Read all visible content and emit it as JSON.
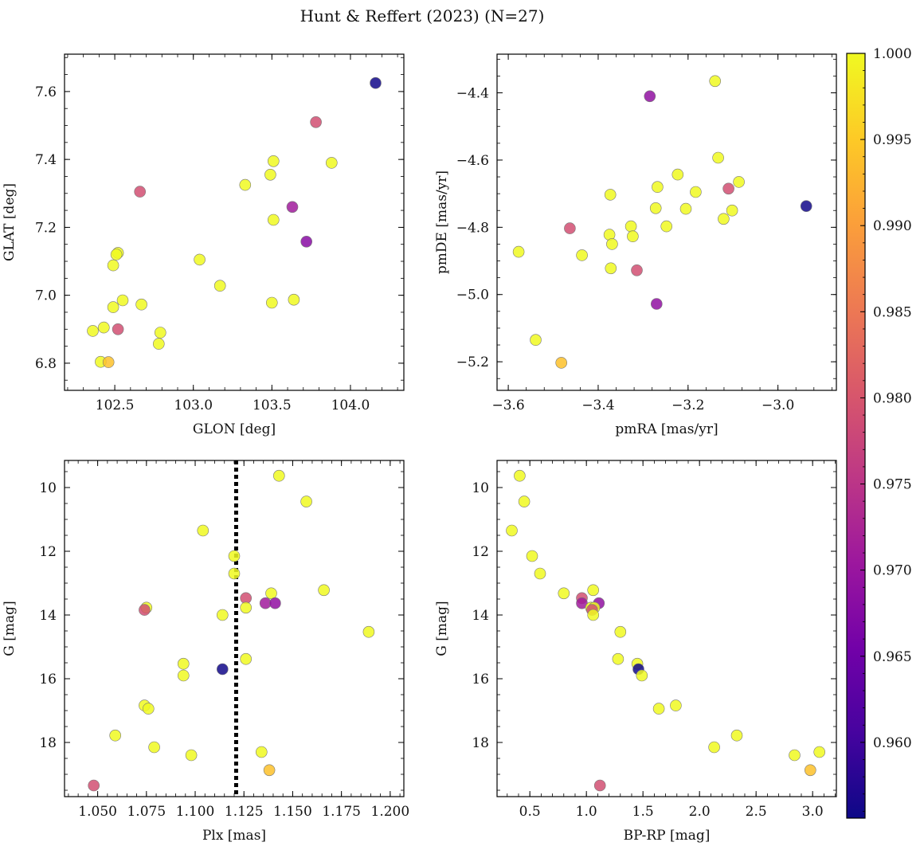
{
  "figure": {
    "title": "Hunt & Reffert (2023) (N=27)"
  },
  "colormap": {
    "name": "plasma",
    "range": [
      0.9556,
      1.0
    ],
    "stops": [
      "#0d0887",
      "#46039f",
      "#7201a8",
      "#9c179e",
      "#bd3786",
      "#d8576b",
      "#ed7953",
      "#fb9f3a",
      "#fdca26",
      "#f0f921"
    ],
    "ticks": [
      "0.960",
      "0.965",
      "0.970",
      "0.975",
      "0.980",
      "0.985",
      "0.990",
      "0.995",
      "1.000"
    ]
  },
  "chart_data": [
    {
      "type": "scatter",
      "xlabel": "GLON [deg]",
      "ylabel": "GLAT [deg]",
      "xlim": [
        102.18,
        104.34
      ],
      "ylim": [
        6.72,
        7.71
      ],
      "xticks": [
        "102.5",
        "103.0",
        "103.5",
        "104.0"
      ],
      "yticks": [
        "6.8",
        "7.0",
        "7.2",
        "7.4",
        "7.6"
      ],
      "points": [
        {
          "x": 104.16,
          "y": 7.625,
          "c": 0.956
        },
        {
          "x": 103.78,
          "y": 7.51,
          "c": 0.979
        },
        {
          "x": 103.51,
          "y": 7.395,
          "c": 1.0
        },
        {
          "x": 103.88,
          "y": 7.39,
          "c": 1.0
        },
        {
          "x": 103.49,
          "y": 7.355,
          "c": 1.0
        },
        {
          "x": 103.33,
          "y": 7.325,
          "c": 1.0
        },
        {
          "x": 102.66,
          "y": 7.305,
          "c": 0.979
        },
        {
          "x": 103.63,
          "y": 7.26,
          "c": 0.971
        },
        {
          "x": 103.51,
          "y": 7.222,
          "c": 1.0
        },
        {
          "x": 103.72,
          "y": 7.158,
          "c": 0.968
        },
        {
          "x": 102.52,
          "y": 7.125,
          "c": 1.0
        },
        {
          "x": 102.51,
          "y": 7.12,
          "c": 1.0
        },
        {
          "x": 103.04,
          "y": 7.105,
          "c": 1.0
        },
        {
          "x": 102.49,
          "y": 7.088,
          "c": 1.0
        },
        {
          "x": 103.17,
          "y": 7.028,
          "c": 1.0
        },
        {
          "x": 103.64,
          "y": 6.987,
          "c": 1.0
        },
        {
          "x": 102.55,
          "y": 6.985,
          "c": 1.0
        },
        {
          "x": 103.5,
          "y": 6.978,
          "c": 1.0
        },
        {
          "x": 102.67,
          "y": 6.973,
          "c": 1.0
        },
        {
          "x": 102.49,
          "y": 6.965,
          "c": 1.0
        },
        {
          "x": 102.43,
          "y": 6.905,
          "c": 1.0
        },
        {
          "x": 102.52,
          "y": 6.9,
          "c": 0.979
        },
        {
          "x": 102.36,
          "y": 6.895,
          "c": 1.0
        },
        {
          "x": 102.79,
          "y": 6.89,
          "c": 1.0
        },
        {
          "x": 102.78,
          "y": 6.857,
          "c": 1.0
        },
        {
          "x": 102.41,
          "y": 6.804,
          "c": 1.0
        },
        {
          "x": 102.46,
          "y": 6.803,
          "c": 0.994
        }
      ]
    },
    {
      "type": "scatter",
      "xlabel": "pmRA [mas/yr]",
      "ylabel": "pmDE [mas/yr]",
      "xlim": [
        -3.625,
        -2.87
      ],
      "ylim": [
        -5.285,
        -4.285
      ],
      "xticks": [
        "−3.6",
        "−3.4",
        "−3.2",
        "−3.0"
      ],
      "yticks": [
        "−4.4",
        "−4.6",
        "−4.8",
        "−5.0",
        "−5.2"
      ],
      "points": [
        {
          "x": -3.14,
          "y": -4.365,
          "c": 1.0
        },
        {
          "x": -3.285,
          "y": -4.41,
          "c": 0.969
        },
        {
          "x": -3.133,
          "y": -4.593,
          "c": 1.0
        },
        {
          "x": -3.223,
          "y": -4.643,
          "c": 1.0
        },
        {
          "x": -3.087,
          "y": -4.665,
          "c": 1.0
        },
        {
          "x": -3.268,
          "y": -4.68,
          "c": 1.0
        },
        {
          "x": -3.11,
          "y": -4.685,
          "c": 0.979
        },
        {
          "x": -3.183,
          "y": -4.695,
          "c": 1.0
        },
        {
          "x": -3.373,
          "y": -4.703,
          "c": 1.0
        },
        {
          "x": -2.937,
          "y": -4.737,
          "c": 0.956
        },
        {
          "x": -3.272,
          "y": -4.743,
          "c": 1.0
        },
        {
          "x": -3.205,
          "y": -4.745,
          "c": 1.0
        },
        {
          "x": -3.102,
          "y": -4.75,
          "c": 1.0
        },
        {
          "x": -3.121,
          "y": -4.775,
          "c": 1.0
        },
        {
          "x": -3.327,
          "y": -4.797,
          "c": 1.0
        },
        {
          "x": -3.248,
          "y": -4.797,
          "c": 1.0
        },
        {
          "x": -3.463,
          "y": -4.803,
          "c": 0.979
        },
        {
          "x": -3.375,
          "y": -4.822,
          "c": 1.0
        },
        {
          "x": -3.323,
          "y": -4.827,
          "c": 1.0
        },
        {
          "x": -3.369,
          "y": -4.85,
          "c": 1.0
        },
        {
          "x": -3.577,
          "y": -4.873,
          "c": 1.0
        },
        {
          "x": -3.436,
          "y": -4.883,
          "c": 1.0
        },
        {
          "x": -3.372,
          "y": -4.922,
          "c": 1.0
        },
        {
          "x": -3.314,
          "y": -4.928,
          "c": 0.979
        },
        {
          "x": -3.27,
          "y": -5.028,
          "c": 0.969
        },
        {
          "x": -3.539,
          "y": -5.135,
          "c": 1.0
        },
        {
          "x": -3.482,
          "y": -5.203,
          "c": 0.994
        }
      ]
    },
    {
      "type": "scatter",
      "xlabel": "Plx [mas]",
      "ylabel": "G [mag]",
      "xlim": [
        1.033,
        1.207
      ],
      "ylim": [
        19.7,
        9.15
      ],
      "xticks": [
        "1.050",
        "1.075",
        "1.100",
        "1.125",
        "1.150",
        "1.175",
        "1.200"
      ],
      "yticks": [
        "10",
        "12",
        "14",
        "16",
        "18"
      ],
      "vline": 1.121,
      "points": [
        {
          "x": 1.143,
          "y": 9.63,
          "c": 1.0
        },
        {
          "x": 1.157,
          "y": 10.44,
          "c": 1.0
        },
        {
          "x": 1.104,
          "y": 11.35,
          "c": 1.0
        },
        {
          "x": 1.12,
          "y": 12.15,
          "c": 1.0
        },
        {
          "x": 1.12,
          "y": 12.7,
          "c": 1.0
        },
        {
          "x": 1.166,
          "y": 13.22,
          "c": 1.0
        },
        {
          "x": 1.139,
          "y": 13.32,
          "c": 1.0
        },
        {
          "x": 1.126,
          "y": 13.47,
          "c": 0.979
        },
        {
          "x": 1.136,
          "y": 13.63,
          "c": 0.971
        },
        {
          "x": 1.141,
          "y": 13.63,
          "c": 0.969
        },
        {
          "x": 1.126,
          "y": 13.77,
          "c": 1.0
        },
        {
          "x": 1.075,
          "y": 13.77,
          "c": 1.0
        },
        {
          "x": 1.074,
          "y": 13.84,
          "c": 0.979
        },
        {
          "x": 1.114,
          "y": 14.0,
          "c": 1.0
        },
        {
          "x": 1.189,
          "y": 14.53,
          "c": 1.0
        },
        {
          "x": 1.126,
          "y": 15.38,
          "c": 1.0
        },
        {
          "x": 1.094,
          "y": 15.53,
          "c": 1.0
        },
        {
          "x": 1.114,
          "y": 15.7,
          "c": 0.956
        },
        {
          "x": 1.094,
          "y": 15.9,
          "c": 1.0
        },
        {
          "x": 1.074,
          "y": 16.84,
          "c": 1.0
        },
        {
          "x": 1.076,
          "y": 16.94,
          "c": 1.0
        },
        {
          "x": 1.059,
          "y": 17.78,
          "c": 1.0
        },
        {
          "x": 1.079,
          "y": 18.15,
          "c": 1.0
        },
        {
          "x": 1.134,
          "y": 18.3,
          "c": 1.0
        },
        {
          "x": 1.098,
          "y": 18.4,
          "c": 1.0
        },
        {
          "x": 1.138,
          "y": 18.87,
          "c": 0.994
        },
        {
          "x": 1.048,
          "y": 19.35,
          "c": 0.979
        }
      ]
    },
    {
      "type": "scatter",
      "xlabel": "BP-RP [mag]",
      "ylabel": "G [mag]",
      "xlim": [
        0.21,
        3.21
      ],
      "ylim": [
        19.7,
        9.15
      ],
      "xticks": [
        "0.5",
        "1.0",
        "1.5",
        "2.0",
        "2.5",
        "3.0"
      ],
      "yticks": [
        "10",
        "12",
        "14",
        "16",
        "18"
      ],
      "points": [
        {
          "x": 0.41,
          "y": 9.63,
          "c": 1.0
        },
        {
          "x": 0.45,
          "y": 10.44,
          "c": 1.0
        },
        {
          "x": 0.34,
          "y": 11.35,
          "c": 1.0
        },
        {
          "x": 0.52,
          "y": 12.15,
          "c": 1.0
        },
        {
          "x": 0.59,
          "y": 12.7,
          "c": 1.0
        },
        {
          "x": 1.06,
          "y": 13.22,
          "c": 1.0
        },
        {
          "x": 0.8,
          "y": 13.32,
          "c": 1.0
        },
        {
          "x": 0.96,
          "y": 13.47,
          "c": 0.979
        },
        {
          "x": 0.96,
          "y": 13.63,
          "c": 0.971
        },
        {
          "x": 1.11,
          "y": 13.63,
          "c": 0.969
        },
        {
          "x": 1.04,
          "y": 13.77,
          "c": 1.0
        },
        {
          "x": 1.07,
          "y": 13.77,
          "c": 1.0
        },
        {
          "x": 1.05,
          "y": 13.84,
          "c": 0.979
        },
        {
          "x": 1.06,
          "y": 14.0,
          "c": 1.0
        },
        {
          "x": 1.3,
          "y": 14.53,
          "c": 1.0
        },
        {
          "x": 1.28,
          "y": 15.38,
          "c": 1.0
        },
        {
          "x": 1.45,
          "y": 15.53,
          "c": 1.0
        },
        {
          "x": 1.46,
          "y": 15.7,
          "c": 0.956
        },
        {
          "x": 1.49,
          "y": 15.9,
          "c": 1.0
        },
        {
          "x": 1.79,
          "y": 16.84,
          "c": 1.0
        },
        {
          "x": 1.64,
          "y": 16.94,
          "c": 1.0
        },
        {
          "x": 2.33,
          "y": 17.78,
          "c": 1.0
        },
        {
          "x": 2.13,
          "y": 18.15,
          "c": 1.0
        },
        {
          "x": 3.06,
          "y": 18.3,
          "c": 1.0
        },
        {
          "x": 2.84,
          "y": 18.4,
          "c": 1.0
        },
        {
          "x": 2.98,
          "y": 18.87,
          "c": 0.994
        },
        {
          "x": 1.12,
          "y": 19.35,
          "c": 0.979
        }
      ]
    }
  ]
}
